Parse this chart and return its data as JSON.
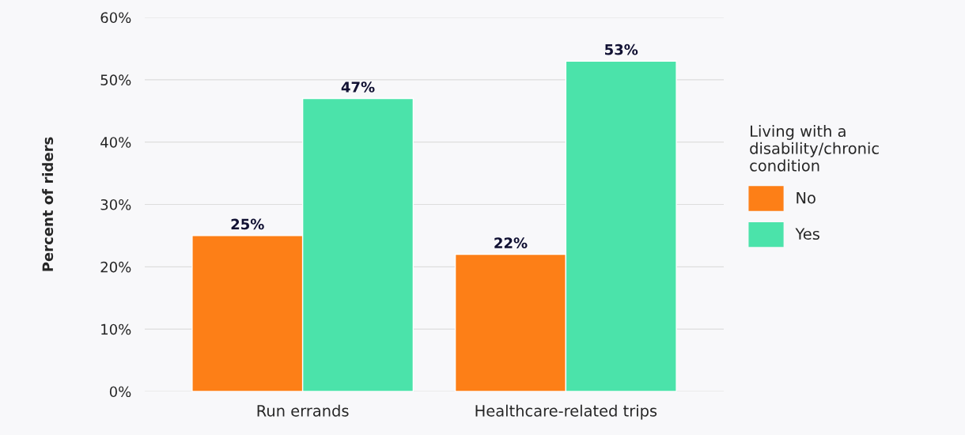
{
  "chart_data": {
    "type": "bar",
    "ylabel": "Percent of riders",
    "legend_title": "Living with a\ndisability/chronic\ncondition",
    "categories": [
      "Run errands",
      "Healthcare-related trips"
    ],
    "series": [
      {
        "name": "No",
        "color": "#fd7f17",
        "values": [
          25,
          22
        ],
        "value_labels": [
          "25%",
          "22%"
        ]
      },
      {
        "name": "Yes",
        "color": "#4be3aa",
        "values": [
          47,
          53
        ],
        "value_labels": [
          "47%",
          "53%"
        ]
      }
    ],
    "ylim": [
      0,
      60
    ],
    "yticks": [
      {
        "value": 0,
        "label": "0%"
      },
      {
        "value": 10,
        "label": "10%"
      },
      {
        "value": 20,
        "label": "20%"
      },
      {
        "value": 30,
        "label": "30%"
      },
      {
        "value": 40,
        "label": "40%"
      },
      {
        "value": 50,
        "label": "50%"
      },
      {
        "value": 60,
        "label": "60%"
      }
    ],
    "grid": "y",
    "legend": "right"
  }
}
